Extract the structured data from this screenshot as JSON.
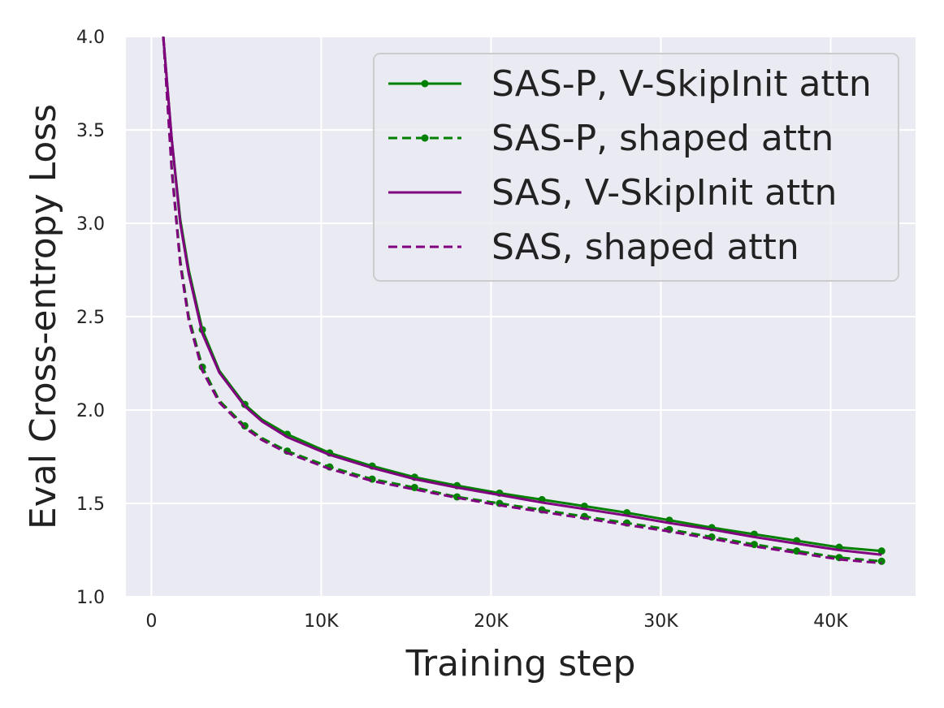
{
  "chart_data": {
    "type": "line",
    "title": "",
    "xlabel": "Training step",
    "ylabel": "Eval Cross-entropy Loss",
    "xlim": [
      -1500,
      45000
    ],
    "ylim": [
      1.0,
      4.0
    ],
    "xticks": [
      0,
      10000,
      20000,
      30000,
      40000
    ],
    "xtick_labels": [
      "0",
      "10K",
      "20K",
      "30K",
      "40K"
    ],
    "yticks": [
      1.0,
      1.5,
      2.0,
      2.5,
      3.0,
      3.5,
      4.0
    ],
    "ytick_labels": [
      "1.0",
      "1.5",
      "2.0",
      "2.5",
      "3.0",
      "3.5",
      "4.0"
    ],
    "grid": true,
    "legend_position": "top-right",
    "background_color": "#eaeaf2",
    "series": [
      {
        "name": "SAS-P, V-SkipInit attn",
        "color": "#008000",
        "linestyle": "solid",
        "marker": "dot",
        "x": [
          700,
          1200,
          1700,
          2200,
          3000,
          4000,
          5500,
          6500,
          8000,
          10500,
          13000,
          15500,
          18000,
          20500,
          23000,
          25500,
          28000,
          30500,
          33000,
          35500,
          38000,
          40500,
          43000
        ],
        "y": [
          4.0,
          3.45,
          3.02,
          2.75,
          2.43,
          2.21,
          2.03,
          1.95,
          1.87,
          1.77,
          1.7,
          1.64,
          1.595,
          1.555,
          1.52,
          1.485,
          1.45,
          1.41,
          1.37,
          1.335,
          1.3,
          1.265,
          1.245
        ],
        "marker_x": [
          3000,
          5500,
          8000,
          10500,
          13000,
          15500,
          18000,
          20500,
          23000,
          25500,
          28000,
          30500,
          33000,
          35500,
          38000,
          40500,
          43000
        ],
        "marker_y": [
          2.43,
          2.03,
          1.87,
          1.77,
          1.7,
          1.64,
          1.595,
          1.555,
          1.52,
          1.485,
          1.45,
          1.41,
          1.37,
          1.335,
          1.3,
          1.265,
          1.245
        ]
      },
      {
        "name": "SAS-P, shaped attn",
        "color": "#008000",
        "linestyle": "dashed",
        "marker": "dot",
        "x": [
          700,
          1200,
          1700,
          2200,
          3000,
          4000,
          5500,
          6500,
          8000,
          10500,
          13000,
          15500,
          18000,
          20500,
          23000,
          25500,
          28000,
          30500,
          33000,
          35500,
          38000,
          40500,
          43000
        ],
        "y": [
          4.0,
          3.3,
          2.8,
          2.5,
          2.23,
          2.05,
          1.915,
          1.85,
          1.78,
          1.695,
          1.63,
          1.585,
          1.535,
          1.5,
          1.465,
          1.43,
          1.395,
          1.36,
          1.32,
          1.28,
          1.245,
          1.21,
          1.19
        ],
        "marker_x": [
          3000,
          5500,
          8000,
          10500,
          13000,
          15500,
          18000,
          20500,
          23000,
          25500,
          28000,
          30500,
          33000,
          35500,
          38000,
          40500,
          43000
        ],
        "marker_y": [
          2.23,
          1.915,
          1.78,
          1.695,
          1.63,
          1.585,
          1.535,
          1.5,
          1.465,
          1.43,
          1.395,
          1.36,
          1.32,
          1.28,
          1.245,
          1.21,
          1.19
        ]
      },
      {
        "name": "SAS, V-SkipInit attn",
        "color": "#800080",
        "linestyle": "solid",
        "marker": "none",
        "x": [
          700,
          1200,
          1700,
          2200,
          3000,
          4000,
          5500,
          6500,
          8000,
          10500,
          13000,
          15500,
          18000,
          20500,
          23000,
          25500,
          28000,
          30500,
          33000,
          35500,
          38000,
          40500,
          43000
        ],
        "y": [
          4.0,
          3.45,
          3.0,
          2.73,
          2.41,
          2.2,
          2.02,
          1.94,
          1.855,
          1.76,
          1.69,
          1.63,
          1.585,
          1.545,
          1.505,
          1.47,
          1.435,
          1.395,
          1.36,
          1.32,
          1.285,
          1.25,
          1.225
        ],
        "marker_x": [],
        "marker_y": []
      },
      {
        "name": "SAS, shaped attn",
        "color": "#800080",
        "linestyle": "dashed",
        "marker": "none",
        "x": [
          700,
          1200,
          1700,
          2200,
          3000,
          4000,
          5500,
          6500,
          8000,
          10500,
          13000,
          15500,
          18000,
          20500,
          23000,
          25500,
          28000,
          30500,
          33000,
          35500,
          38000,
          40500,
          43000
        ],
        "y": [
          4.0,
          3.28,
          2.78,
          2.48,
          2.21,
          2.04,
          1.905,
          1.84,
          1.77,
          1.685,
          1.62,
          1.575,
          1.53,
          1.49,
          1.455,
          1.42,
          1.385,
          1.35,
          1.31,
          1.27,
          1.235,
          1.2,
          1.18
        ],
        "marker_x": [],
        "marker_y": []
      }
    ]
  }
}
